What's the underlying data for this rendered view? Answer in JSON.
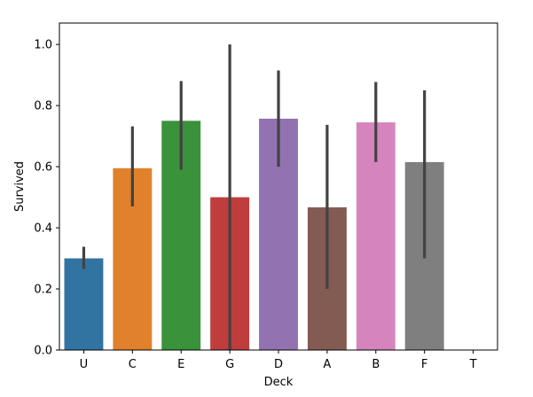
{
  "chart_data": {
    "type": "bar",
    "title": "",
    "xlabel": "Deck",
    "ylabel": "Survived",
    "ylim": [
      0,
      1.07
    ],
    "grid": false,
    "yticks": [
      0.0,
      0.2,
      0.4,
      0.6,
      0.8,
      1.0
    ],
    "ytick_labels": [
      "0.0",
      "0.2",
      "0.4",
      "0.6",
      "0.8",
      "1.0"
    ],
    "categories": [
      "U",
      "C",
      "E",
      "G",
      "D",
      "A",
      "B",
      "F",
      "T"
    ],
    "values": [
      0.3,
      0.595,
      0.75,
      0.5,
      0.757,
      0.467,
      0.745,
      0.615,
      0.0
    ],
    "error_low": [
      0.265,
      0.47,
      0.59,
      0.0,
      0.6,
      0.2,
      0.615,
      0.3,
      null
    ],
    "error_high": [
      0.338,
      0.732,
      0.88,
      1.0,
      0.915,
      0.737,
      0.877,
      0.85,
      null
    ],
    "colors": [
      "#3274a1",
      "#e1812c",
      "#3a923a",
      "#c03d3e",
      "#9372b2",
      "#845b53",
      "#d684bd",
      "#7f7f7f",
      "#a9aa35"
    ],
    "error_color": "#424242"
  }
}
